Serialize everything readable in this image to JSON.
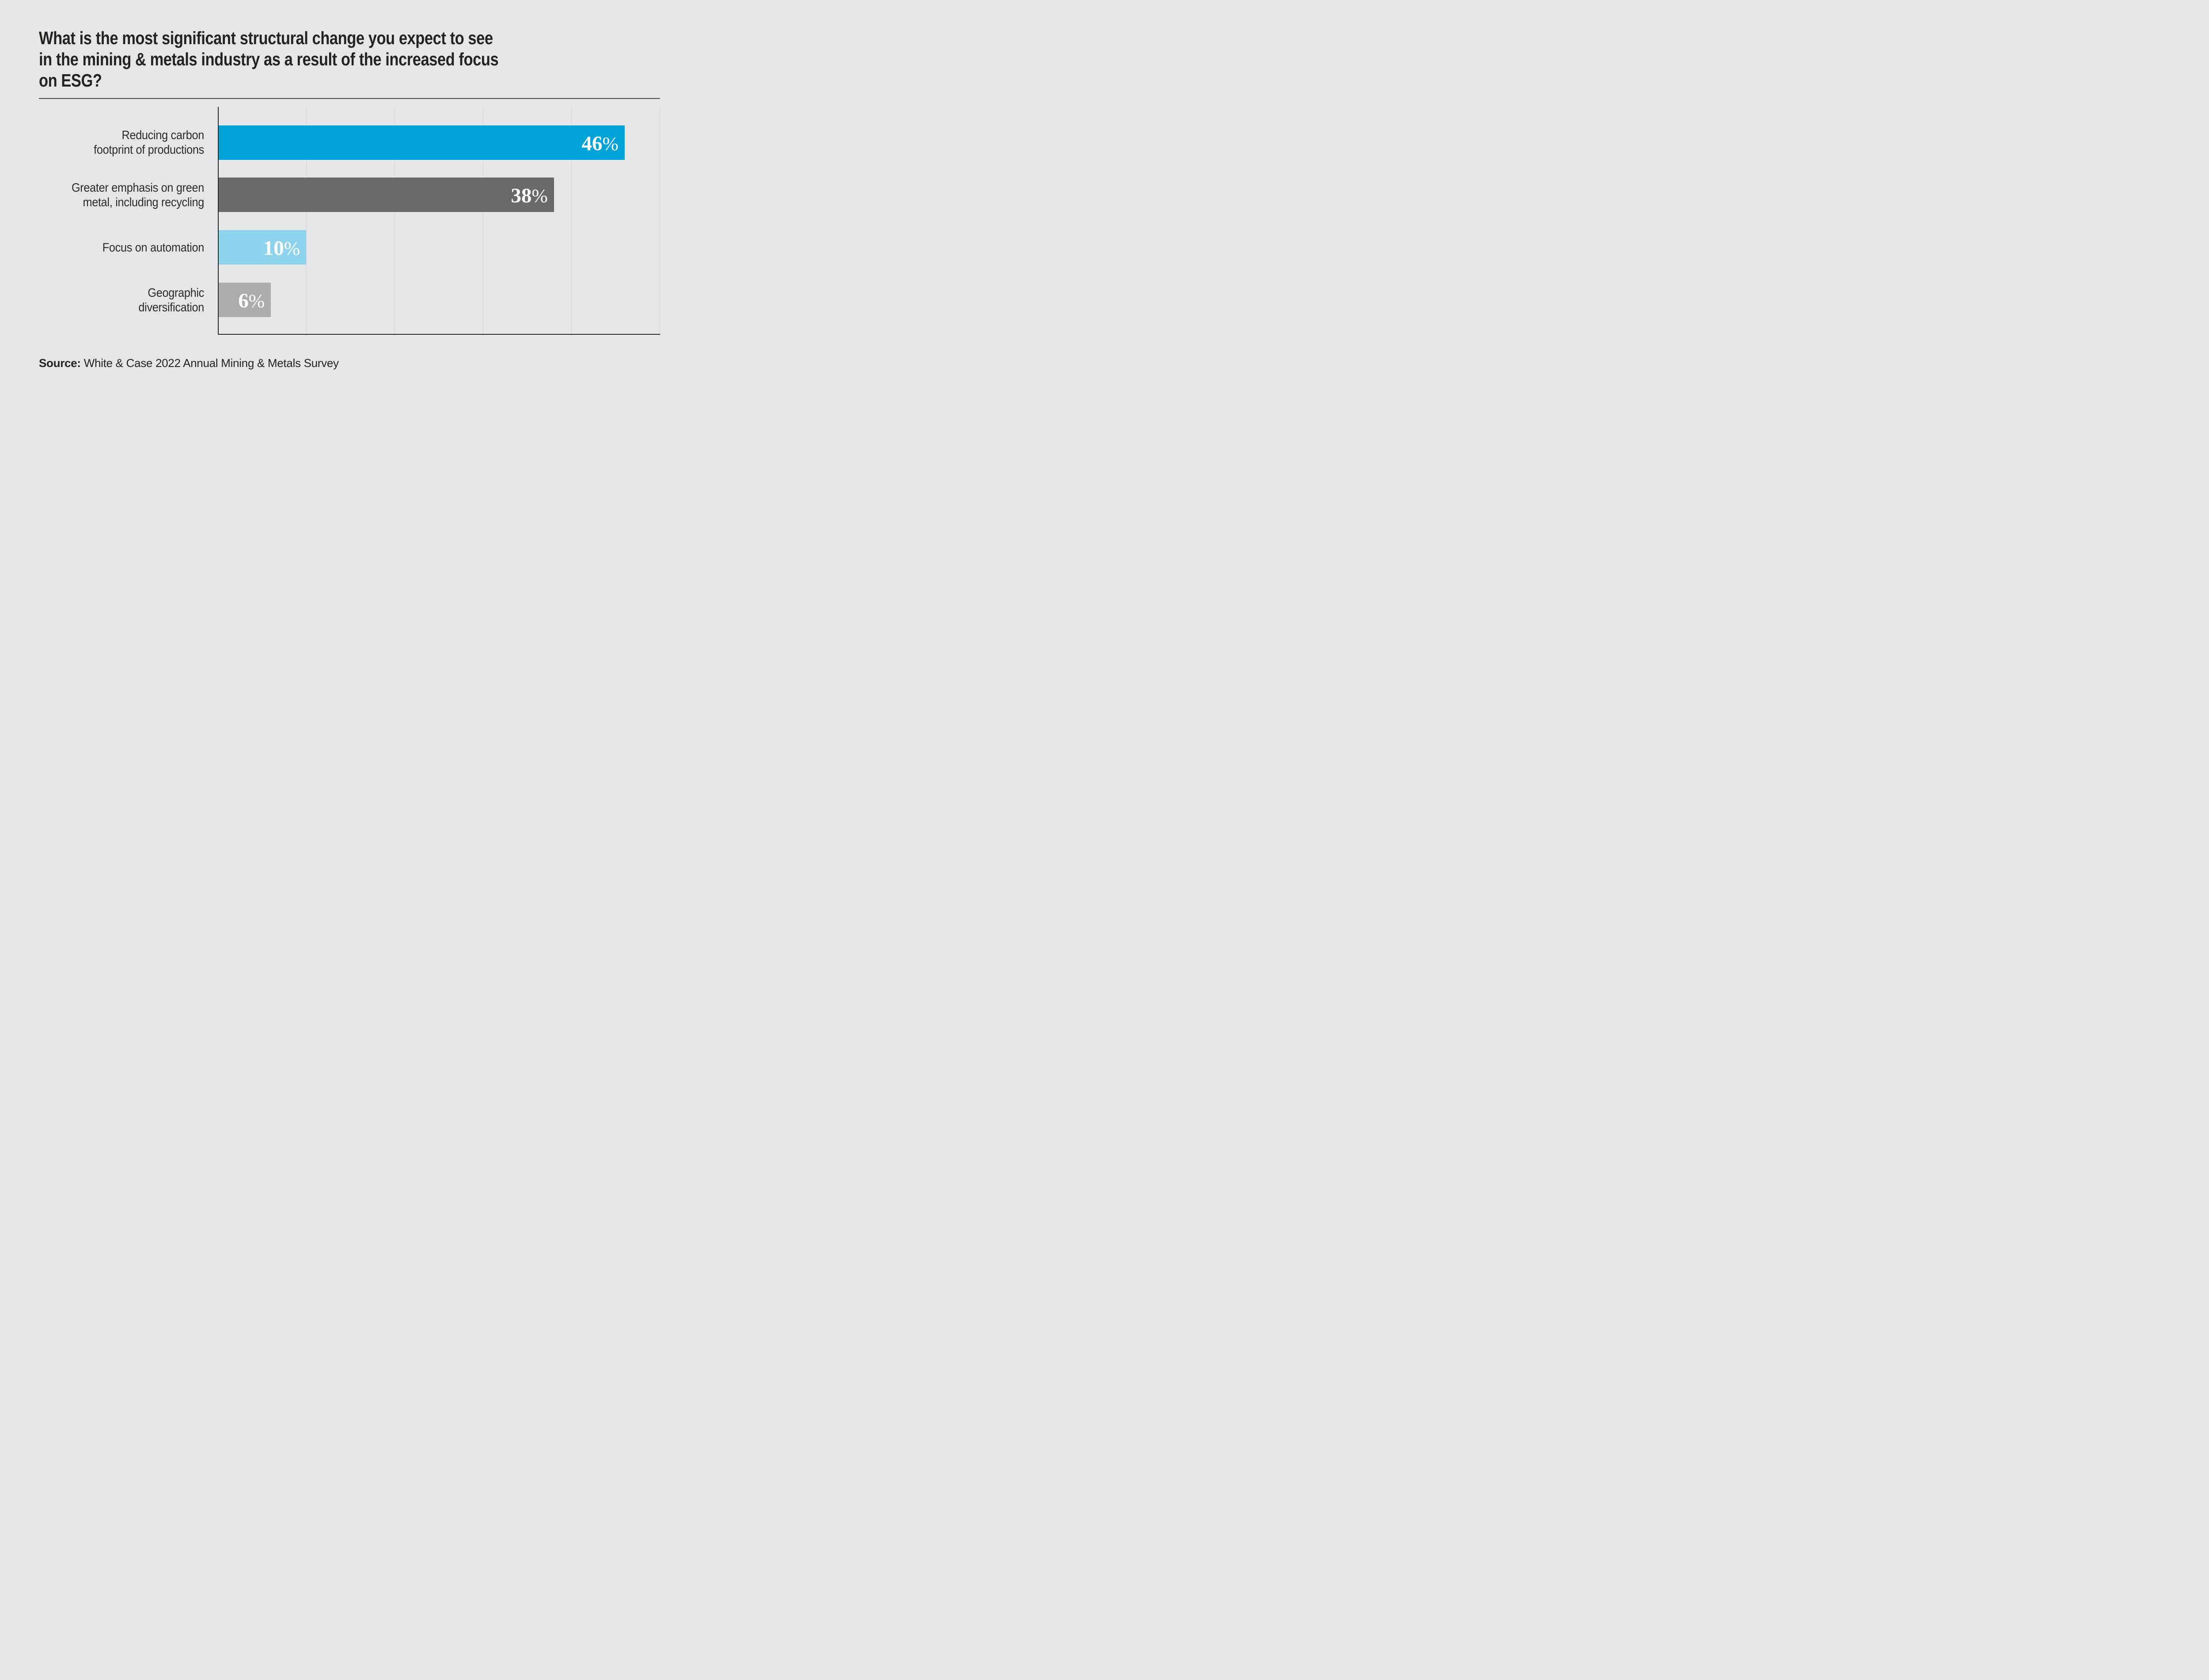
{
  "chart_data": {
    "type": "bar",
    "orientation": "horizontal",
    "title": "What is the most significant structural change you expect to see\nin the mining & metals industry as a result of the increased focus\non ESG?",
    "categories": [
      "Reducing carbon\nfootprint of productions",
      "Greater emphasis on green\nmetal, including recycling",
      "Focus on automation",
      "Geographic\ndiversification"
    ],
    "values": [
      46,
      38,
      10,
      6
    ],
    "value_labels": [
      "46",
      "38",
      "10",
      "6"
    ],
    "unit": "%",
    "xlim": [
      0,
      50
    ],
    "gridline_interval": 10,
    "grid": true,
    "legend": "none",
    "bar_colors": [
      "#00a3d7",
      "#6a6a6d",
      "#8dd3ee",
      "#acacad"
    ],
    "label_color": "#2b2a29",
    "value_text_color": "#ffffff",
    "background_color": "#e6e7e8"
  },
  "percent_symbol": "%",
  "source": {
    "prefix": "Source:",
    "text": "White & Case 2022 Annual Mining & Metals Survey"
  }
}
